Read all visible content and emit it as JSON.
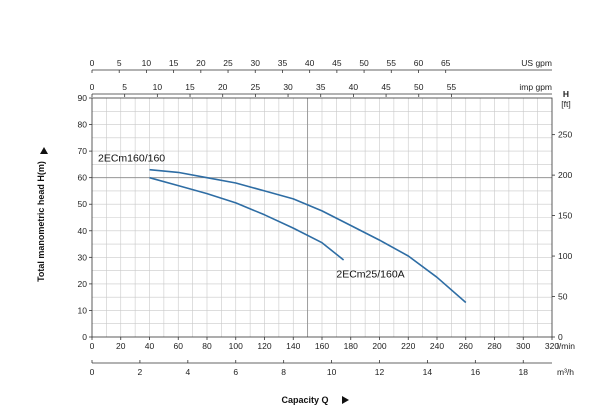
{
  "chart_data": {
    "type": "line",
    "xlabel": "Capacity Q",
    "ylabel": "Total manometric head H(m)",
    "x_unit": "l/min",
    "xlim": [
      0,
      320
    ],
    "x_ticks": [
      "0",
      "20",
      "40",
      "60",
      "80",
      "100",
      "120",
      "140",
      "160",
      "180",
      "200",
      "220",
      "240",
      "260",
      "280",
      "300",
      "320"
    ],
    "ylim": [
      0,
      90
    ],
    "y_ticks": [
      "0",
      "10",
      "20",
      "30",
      "40",
      "50",
      "60",
      "70",
      "80",
      "90"
    ],
    "grid": true,
    "secondary_axes": {
      "top_us_gpm": {
        "unit": "US gpm",
        "ticks": [
          "0",
          "5",
          "10",
          "15",
          "20",
          "25",
          "30",
          "35",
          "40",
          "45",
          "50",
          "55",
          "60",
          "65"
        ]
      },
      "top_imp_gpm": {
        "unit": "imp gpm",
        "ticks": [
          "0",
          "5",
          "10",
          "15",
          "20",
          "25",
          "30",
          "35",
          "40",
          "45",
          "50",
          "55"
        ]
      },
      "right_ft": {
        "unit_top": "H",
        "unit_bottom": "[ft]",
        "ticks": [
          "0",
          "50",
          "100",
          "150",
          "200",
          "250"
        ]
      },
      "bottom_m3h": {
        "unit": "m³/h",
        "ticks": [
          "0",
          "2",
          "4",
          "6",
          "8",
          "10",
          "12",
          "14",
          "16",
          "18"
        ]
      }
    },
    "series": [
      {
        "name": "2ECm160/160",
        "color": "#2e6da4",
        "x": [
          40,
          60,
          80,
          100,
          120,
          140,
          160,
          180,
          200,
          220,
          240,
          260
        ],
        "y": [
          63,
          62,
          60,
          58,
          55,
          52,
          47.5,
          42,
          36.5,
          30.5,
          22.5,
          13
        ]
      },
      {
        "name": "2ECm25/160A",
        "color": "#2e6da4",
        "x": [
          40,
          60,
          80,
          100,
          120,
          140,
          160,
          175
        ],
        "y": [
          60,
          57,
          54,
          50.5,
          46,
          41,
          35.5,
          29
        ]
      }
    ]
  }
}
